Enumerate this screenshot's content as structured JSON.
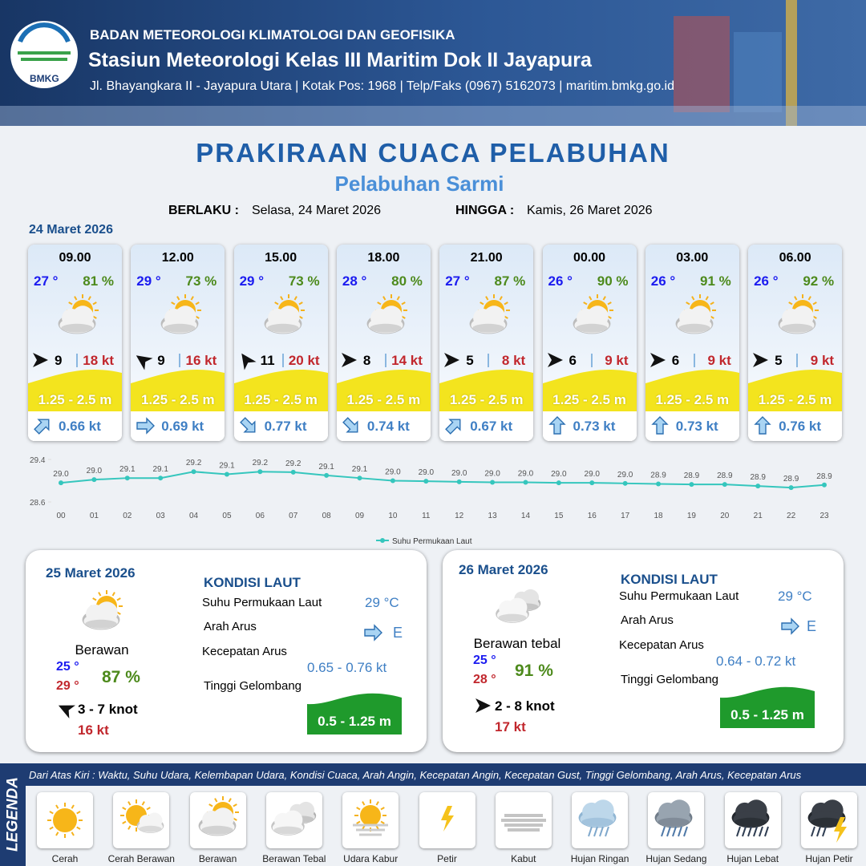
{
  "header": {
    "logo_text": "BMKG",
    "agency": "BADAN METEOROLOGI KLIMATOLOGI DAN GEOFISIKA",
    "station": "Stasiun Meteorologi Kelas III Maritim Dok II Jayapura",
    "address": "Jl. Bhayangkara II - Jayapura Utara | Kotak Pos: 1968 | Telp/Faks (0967) 5162073 | maritim.bmkg.go.id"
  },
  "title": "PRAKIRAAN CUACA PELABUHAN",
  "subtitle": "Pelabuhan Sarmi",
  "validity": {
    "from_label": "BERLAKU :",
    "from": "Selasa, 24 Maret 2026",
    "to_label": "HINGGA :",
    "to": "Kamis, 26 Maret 2026"
  },
  "day1": {
    "date": "24 Maret 2026",
    "forecasts": [
      {
        "time": "09.00",
        "temperature": "27 °",
        "humidity": "81 %",
        "wind_speed": "9",
        "gust": "18 kt",
        "wave": "1.25 - 2.5 m",
        "current": "0.66 kt"
      },
      {
        "time": "12.00",
        "temperature": "29 °",
        "humidity": "73 %",
        "wind_speed": "9",
        "gust": "16 kt",
        "wave": "1.25 - 2.5 m",
        "current": "0.69 kt"
      },
      {
        "time": "15.00",
        "temperature": "29 °",
        "humidity": "73 %",
        "wind_speed": "11",
        "gust": "20 kt",
        "wave": "1.25 - 2.5 m",
        "current": "0.77 kt"
      },
      {
        "time": "18.00",
        "temperature": "28 °",
        "humidity": "80 %",
        "wind_speed": "8",
        "gust": "14 kt",
        "wave": "1.25 - 2.5 m",
        "current": "0.74 kt"
      },
      {
        "time": "21.00",
        "temperature": "27 °",
        "humidity": "87 %",
        "wind_speed": "5",
        "gust": "8 kt",
        "wave": "1.25 - 2.5 m",
        "current": "0.67 kt"
      },
      {
        "time": "00.00",
        "temperature": "26 °",
        "humidity": "90 %",
        "wind_speed": "6",
        "gust": "9 kt",
        "wave": "1.25 - 2.5 m",
        "current": "0.73 kt"
      },
      {
        "time": "03.00",
        "temperature": "26 °",
        "humidity": "91 %",
        "wind_speed": "6",
        "gust": "9 kt",
        "wave": "1.25 - 2.5 m",
        "current": "0.73 kt"
      },
      {
        "time": "06.00",
        "temperature": "26 °",
        "humidity": "92 %",
        "wind_speed": "5",
        "gust": "9 kt",
        "wave": "1.25 - 2.5 m",
        "current": "0.76 kt"
      }
    ]
  },
  "sst_chart": {
    "type": "line",
    "x": [
      "00",
      "01",
      "02",
      "03",
      "04",
      "05",
      "06",
      "07",
      "08",
      "09",
      "10",
      "11",
      "12",
      "13",
      "14",
      "15",
      "16",
      "17",
      "18",
      "19",
      "20",
      "21",
      "22",
      "23"
    ],
    "values": [
      28.96,
      29.02,
      29.05,
      29.05,
      29.17,
      29.12,
      29.17,
      29.16,
      29.1,
      29.05,
      29.0,
      28.99,
      28.98,
      28.97,
      28.97,
      28.96,
      28.96,
      28.95,
      28.94,
      28.93,
      28.93,
      28.9,
      28.87,
      28.92
    ],
    "value_labels": [
      "29.0",
      "29.0",
      "29.1",
      "29.1",
      "29.2",
      "29.1",
      "29.2",
      "29.2",
      "29.1",
      "29.1",
      "29.0",
      "29.0",
      "29.0",
      "29.0",
      "29.0",
      "29.0",
      "29.0",
      "29.0",
      "28.9",
      "28.9",
      "28.9",
      "28.9",
      "28.9",
      "28.9"
    ],
    "ylim": [
      28.6,
      29.4
    ],
    "yticks": [
      28.6,
      29.4
    ],
    "color": "#35c6bd",
    "legend": "Suhu Permukaan Laut"
  },
  "daily": [
    {
      "date": "25 Maret 2026",
      "condition": "Berawan",
      "temp_min": "25 °",
      "temp_max": "29 °",
      "humidity": "87 %",
      "wind": "3 - 7 knot",
      "gust": "16 kt",
      "sea_title": "KONDISI LAUT",
      "sst_label": "Suhu Permukaan Laut",
      "sst": "29 °C",
      "current_dir_label": "Arah Arus",
      "current_dir": "E",
      "current_speed_label": "Kecepatan Arus",
      "current_speed": "0.65 - 0.76 kt",
      "wave_label": "Tinggi Gelombang",
      "wave": "0.5 - 1.25 m"
    },
    {
      "date": "26 Maret 2026",
      "condition": "Berawan tebal",
      "temp_min": "25 °",
      "temp_max": "28 °",
      "humidity": "91 %",
      "wind": "2 - 8 knot",
      "gust": "17 kt",
      "sea_title": "KONDISI LAUT",
      "sst_label": "Suhu Permukaan Laut",
      "sst": "29 °C",
      "current_dir_label": "Arah Arus",
      "current_dir": "E",
      "current_speed_label": "Kecepatan Arus",
      "current_speed": "0.64 - 0.72 kt",
      "wave_label": "Tinggi Gelombang",
      "wave": "0.5 - 1.25 m"
    }
  ],
  "legend": {
    "title": "LEGENDA",
    "description": "Dari Atas Kiri : Waktu, Suhu Udara, Kelembapan Udara, Kondisi Cuaca, Arah Angin, Kecepatan Angin, Kecepatan Gust, Tinggi Gelombang, Arah Arus, Kecepatan Arus",
    "items": [
      "Cerah",
      "Cerah Berawan",
      "Berawan",
      "Berawan Tebal",
      "Udara Kabur",
      "Petir",
      "Kabut",
      "Hujan Ringan",
      "Hujan Sedang",
      "Hujan Lebat",
      "Hujan Petir"
    ]
  }
}
